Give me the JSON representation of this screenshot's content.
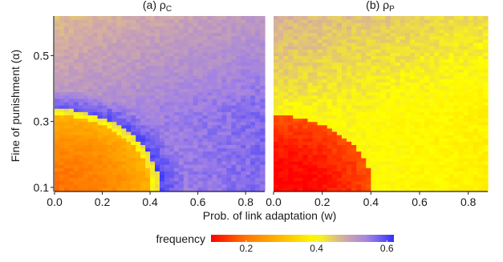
{
  "chart_data": {
    "type": "heatmap",
    "xlabel": "Prob. of link adaptation (w)",
    "ylabel": "Fine of punishment (α)",
    "colorbar": {
      "title": "frequency",
      "ticks": [
        "0.2",
        "0.4",
        "0.6"
      ],
      "range": [
        0.1,
        0.62
      ],
      "stops": [
        {
          "v": 0.1,
          "c": "#ff0000"
        },
        {
          "v": 0.2,
          "c": "#ff7700"
        },
        {
          "v": 0.3,
          "c": "#ffbb00"
        },
        {
          "v": 0.4,
          "c": "#ffff00"
        },
        {
          "v": 0.47,
          "c": "#d8b09e"
        },
        {
          "v": 0.55,
          "c": "#a080e6"
        },
        {
          "v": 0.62,
          "c": "#3030ff"
        }
      ]
    },
    "grid": false,
    "xlim": [
      0,
      0.88
    ],
    "ylim": [
      0.09,
      0.62
    ],
    "x_ticks": [
      {
        "v": 0.0,
        "label": "0.0"
      },
      {
        "v": 0.2,
        "label": "0.2"
      },
      {
        "v": 0.4,
        "label": "0.4"
      },
      {
        "v": 0.6,
        "label": "0.6"
      },
      {
        "v": 0.8,
        "label": "0.8"
      }
    ],
    "y_ticks": [
      {
        "v": 0.1,
        "label": "0.1"
      },
      {
        "v": 0.3,
        "label": "0.3"
      },
      {
        "v": 0.5,
        "label": "0.5"
      }
    ],
    "grid_resolution": {
      "nx": 44,
      "ny": 53
    },
    "panels": [
      {
        "title_prefix": "(a) ρ",
        "title_sub": "C",
        "regions": {
          "low_fine_boundary": {
            "radius_w": 0.41,
            "radius_alpha": 0.32
          },
          "inside_value_range": [
            0.2,
            0.29
          ],
          "high_fine_value": 0.46,
          "high_w_value": 0.57,
          "corner_value_near_boundary": 0.62
        }
      },
      {
        "title_prefix": "(b) ρ",
        "title_sub": "P",
        "regions": {
          "low_fine_boundary": {
            "radius_w": 0.41,
            "radius_alpha": 0.32
          },
          "inside_value_range": [
            0.1,
            0.17
          ],
          "high_fine_value": 0.47,
          "high_w_value": 0.38,
          "corner_value_near_boundary": 0.4
        }
      }
    ]
  }
}
